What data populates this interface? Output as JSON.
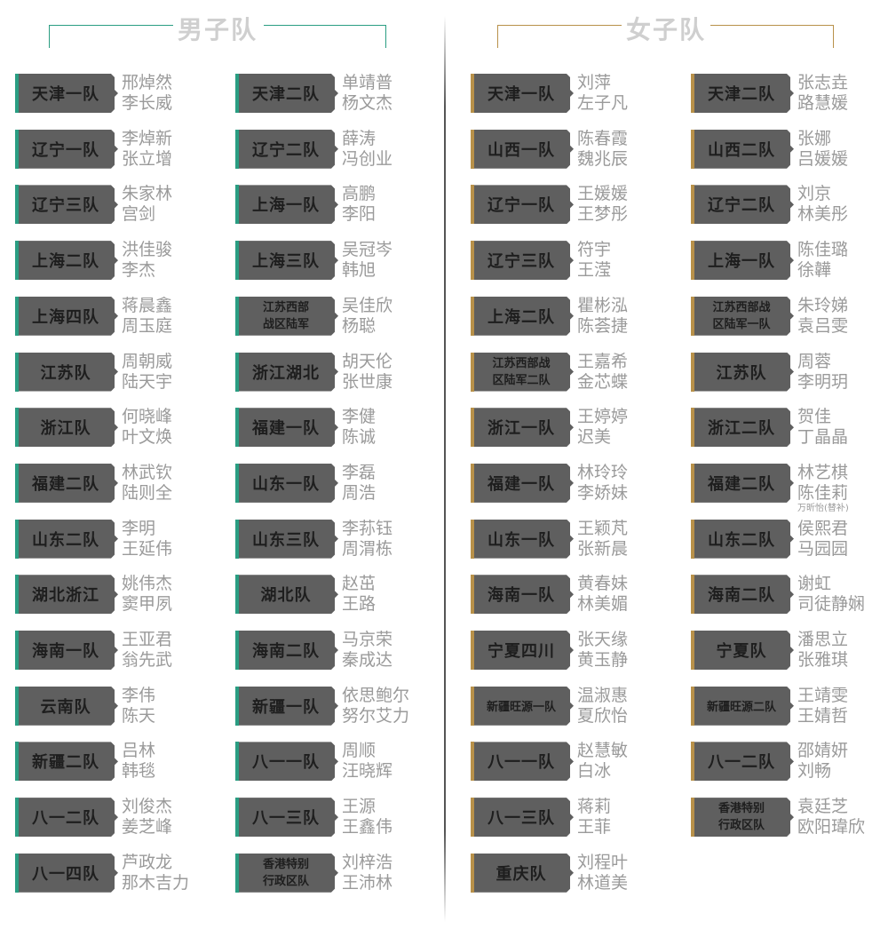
{
  "men": {
    "title": "男子队",
    "accent": "#2a9d82",
    "rows": [
      [
        {
          "label": [
            "天津一队"
          ],
          "players": [
            "邢焯然",
            "李长威"
          ]
        },
        {
          "label": [
            "天津二队"
          ],
          "players": [
            "单靖普",
            "杨文杰"
          ]
        }
      ],
      [
        {
          "label": [
            "辽宁一队"
          ],
          "players": [
            "李焯新",
            "张立增"
          ]
        },
        {
          "label": [
            "辽宁二队"
          ],
          "players": [
            "薛涛",
            "冯创业"
          ]
        }
      ],
      [
        {
          "label": [
            "辽宁三队"
          ],
          "players": [
            "朱家林",
            "宫剑"
          ]
        },
        {
          "label": [
            "上海一队"
          ],
          "players": [
            "高鹏",
            "李阳"
          ]
        }
      ],
      [
        {
          "label": [
            "上海二队"
          ],
          "players": [
            "洪佳骏",
            "李杰"
          ]
        },
        {
          "label": [
            "上海三队"
          ],
          "players": [
            "吴冠岑",
            "韩旭"
          ]
        }
      ],
      [
        {
          "label": [
            "上海四队"
          ],
          "players": [
            "蒋晨鑫",
            "周玉庭"
          ]
        },
        {
          "label": [
            "江苏西部",
            "战区陆军"
          ],
          "players": [
            "吴佳欣",
            "杨聪"
          ]
        }
      ],
      [
        {
          "label": [
            "江苏队"
          ],
          "players": [
            "周朝威",
            "陆天宇"
          ]
        },
        {
          "label": [
            "浙江湖北"
          ],
          "players": [
            "胡天伦",
            "张世康"
          ]
        }
      ],
      [
        {
          "label": [
            "浙江队"
          ],
          "players": [
            "何晓峰",
            "叶文焕"
          ]
        },
        {
          "label": [
            "福建一队"
          ],
          "players": [
            "李健",
            "陈诚"
          ]
        }
      ],
      [
        {
          "label": [
            "福建二队"
          ],
          "players": [
            "林武钦",
            "陆则全"
          ]
        },
        {
          "label": [
            "山东一队"
          ],
          "players": [
            "李磊",
            "周浩"
          ]
        }
      ],
      [
        {
          "label": [
            "山东二队"
          ],
          "players": [
            "李明",
            "王延伟"
          ]
        },
        {
          "label": [
            "山东三队"
          ],
          "players": [
            "李荪钰",
            "周渭栋"
          ]
        }
      ],
      [
        {
          "label": [
            "湖北浙江"
          ],
          "players": [
            "姚伟杰",
            "窦甲夙"
          ]
        },
        {
          "label": [
            "湖北队"
          ],
          "players": [
            "赵茁",
            "王路"
          ]
        }
      ],
      [
        {
          "label": [
            "海南一队"
          ],
          "players": [
            "王亚君",
            "翁先武"
          ]
        },
        {
          "label": [
            "海南二队"
          ],
          "players": [
            "马京荣",
            "秦成达"
          ]
        }
      ],
      [
        {
          "label": [
            "云南队"
          ],
          "players": [
            "李伟",
            "陈天"
          ]
        },
        {
          "label": [
            "新疆一队"
          ],
          "players": [
            "依思鲍尔",
            "努尔艾力"
          ]
        }
      ],
      [
        {
          "label": [
            "新疆二队"
          ],
          "players": [
            "吕林",
            "韩毯"
          ]
        },
        {
          "label": [
            "八一一队"
          ],
          "players": [
            "周顺",
            "汪晓辉"
          ]
        }
      ],
      [
        {
          "label": [
            "八一二队"
          ],
          "players": [
            "刘俊杰",
            "姜芝峰"
          ]
        },
        {
          "label": [
            "八一三队"
          ],
          "players": [
            "王源",
            "王鑫伟"
          ]
        }
      ],
      [
        {
          "label": [
            "八一四队"
          ],
          "players": [
            "芦政龙",
            "那木吉力"
          ]
        },
        {
          "label": [
            "香港特别",
            "行政区队"
          ],
          "players": [
            "刘梓浩",
            "王沛林"
          ]
        }
      ]
    ]
  },
  "women": {
    "title": "女子队",
    "accent": "#b8914a",
    "rows": [
      [
        {
          "label": [
            "天津一队"
          ],
          "players": [
            "刘萍",
            "左子凡"
          ]
        },
        {
          "label": [
            "天津二队"
          ],
          "players": [
            "张志垚",
            "路慧媛"
          ]
        }
      ],
      [
        {
          "label": [
            "山西一队"
          ],
          "players": [
            "陈春霞",
            "魏兆辰"
          ]
        },
        {
          "label": [
            "山西二队"
          ],
          "players": [
            "张娜",
            "吕媛媛"
          ]
        }
      ],
      [
        {
          "label": [
            "辽宁一队"
          ],
          "players": [
            "王媛媛",
            "王梦彤"
          ]
        },
        {
          "label": [
            "辽宁二队"
          ],
          "players": [
            "刘京",
            "林美彤"
          ]
        }
      ],
      [
        {
          "label": [
            "辽宁三队"
          ],
          "players": [
            "符宇",
            "王滢"
          ]
        },
        {
          "label": [
            "上海一队"
          ],
          "players": [
            "陈佳璐",
            "徐韡"
          ]
        }
      ],
      [
        {
          "label": [
            "上海二队"
          ],
          "players": [
            "瞿彬泓",
            "陈荟捷"
          ]
        },
        {
          "label": [
            "江苏西部战",
            "区陆军一队"
          ],
          "players": [
            "朱玲娣",
            "袁吕雯"
          ]
        }
      ],
      [
        {
          "label": [
            "江苏西部战",
            "区陆军二队"
          ],
          "players": [
            "王嘉希",
            "金芯蝶"
          ]
        },
        {
          "label": [
            "江苏队"
          ],
          "players": [
            "周蓉",
            "李明玥"
          ]
        }
      ],
      [
        {
          "label": [
            "浙江一队"
          ],
          "players": [
            "王婷婷",
            "迟美"
          ]
        },
        {
          "label": [
            "浙江二队"
          ],
          "players": [
            "贺佳",
            "丁晶晶"
          ]
        }
      ],
      [
        {
          "label": [
            "福建一队"
          ],
          "players": [
            "林玲玲",
            "李娇妹"
          ]
        },
        {
          "label": [
            "福建二队"
          ],
          "players": [
            "林艺棋",
            "陈佳莉"
          ],
          "substitute": "万昕怡(替补)"
        }
      ],
      [
        {
          "label": [
            "山东一队"
          ],
          "players": [
            "王颖芃",
            "张新晨"
          ]
        },
        {
          "label": [
            "山东二队"
          ],
          "players": [
            "侯熙君",
            "马园园"
          ]
        }
      ],
      [
        {
          "label": [
            "海南一队"
          ],
          "players": [
            "黄春妹",
            "林美媚"
          ]
        },
        {
          "label": [
            "海南二队"
          ],
          "players": [
            "谢虹",
            "司徒静娴"
          ]
        }
      ],
      [
        {
          "label": [
            "宁夏四川"
          ],
          "players": [
            "张天缘",
            "黄玉静"
          ]
        },
        {
          "label": [
            "宁夏队"
          ],
          "players": [
            "潘思立",
            "张雅琪"
          ]
        }
      ],
      [
        {
          "label": [
            "新疆旺源一队"
          ],
          "players": [
            "温淑惠",
            "夏欣怡"
          ]
        },
        {
          "label": [
            "新疆旺源二队"
          ],
          "players": [
            "王靖雯",
            "王婧哲"
          ]
        }
      ],
      [
        {
          "label": [
            "八一一队"
          ],
          "players": [
            "赵慧敏",
            "白冰"
          ]
        },
        {
          "label": [
            "八一二队"
          ],
          "players": [
            "邵婧妍",
            "刘畅"
          ]
        }
      ],
      [
        {
          "label": [
            "八一三队"
          ],
          "players": [
            "蒋莉",
            "王菲"
          ]
        },
        {
          "label": [
            "香港特别",
            "行政区队"
          ],
          "players": [
            "袁廷芝",
            "欧阳瑋欣"
          ]
        }
      ],
      [
        {
          "label": [
            "重庆队"
          ],
          "players": [
            "刘程叶",
            "林道美"
          ]
        }
      ]
    ]
  }
}
